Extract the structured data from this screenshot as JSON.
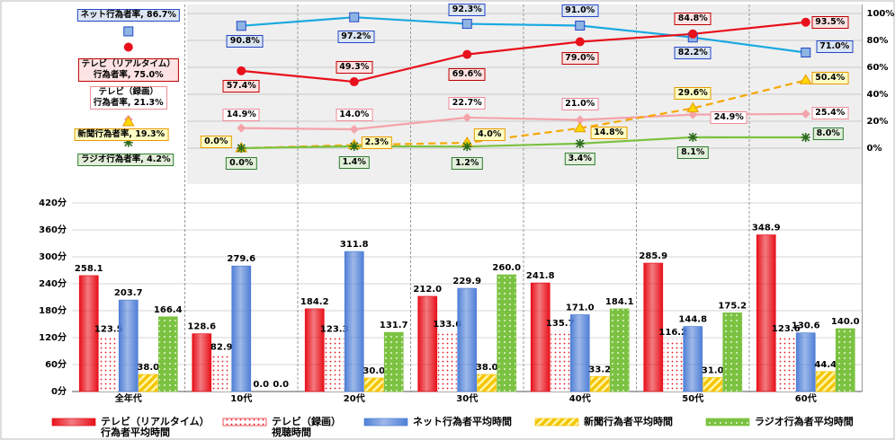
{
  "chart_data": [
    {
      "type": "line",
      "ylim": [
        0,
        100
      ],
      "yticks": [
        {
          "value": 0,
          "label": "0%"
        },
        {
          "value": 20,
          "label": "20%"
        },
        {
          "value": 40,
          "label": "40%"
        },
        {
          "value": 60,
          "label": "60%"
        },
        {
          "value": 80,
          "label": "80%"
        },
        {
          "value": 100,
          "label": "100%"
        }
      ],
      "grid": true,
      "series": [
        {
          "color": "#1aa9e0",
          "marker": "square",
          "marker_color": "#8eb4e3",
          "label_border": "#2446c8",
          "label_fill": "#dce6f2",
          "values": [
            86.7,
            90.8,
            97.2,
            92.3,
            91.0,
            82.2,
            71.0
          ],
          "value_labels": [
            "ネット行為者率, 86.7%",
            "90.8%",
            "97.2%",
            "92.3%",
            "91.0%",
            "82.2%",
            "71.0%"
          ]
        },
        {
          "color": "#e8101a",
          "marker": "circle",
          "marker_color": "#e8101a",
          "label_border": "#c00000",
          "label_fill": "#fde3e3",
          "values": [
            75.0,
            57.4,
            49.3,
            69.6,
            79.0,
            84.8,
            93.5
          ],
          "value_labels": [
            "テレビ（リアルタイム）\n行為者率, 75.0%",
            "57.4%",
            "49.3%",
            "69.6%",
            "79.0%",
            "84.8%",
            "93.5%"
          ]
        },
        {
          "color": "#f4a3ab",
          "marker": "diamond",
          "marker_color": "#f4a3ab",
          "label_border": "#f08a96",
          "label_fill": "#ffffff",
          "values": [
            21.3,
            14.9,
            14.0,
            22.7,
            21.0,
            24.9,
            25.4
          ],
          "value_labels": [
            "テレビ（録画）\n行為者率, 21.3%",
            "14.9%",
            "14.0%",
            "22.7%",
            "21.0%",
            "24.9%",
            "25.4%"
          ]
        },
        {
          "color": "#f5a800",
          "dash": true,
          "marker": "triangle",
          "marker_color": "#ffd700",
          "label_border": "#e69a00",
          "label_fill": "#ffffc4",
          "values": [
            19.3,
            0.0,
            2.3,
            4.0,
            14.8,
            29.6,
            50.4
          ],
          "value_labels": [
            "新聞行為者率, 19.3%",
            "0.0%",
            "2.3%",
            "4.0%",
            "14.8%",
            "29.6%",
            "50.4%"
          ]
        },
        {
          "color": "#7cc242",
          "marker": "star",
          "marker_color": "#2e6b1e",
          "label_border": "#2e7d32",
          "label_fill": "#e2efda",
          "values": [
            4.2,
            0.0,
            1.4,
            1.2,
            3.4,
            8.1,
            8.0
          ],
          "value_labels": [
            "ラジオ行為者率, 4.2%",
            "0.0%",
            "1.4%",
            "1.2%",
            "3.4%",
            "8.1%",
            "8.0%"
          ]
        }
      ]
    },
    {
      "type": "bar",
      "categories": [
        "全年代",
        "10代",
        "20代",
        "30代",
        "40代",
        "50代",
        "60代"
      ],
      "ylim": [
        0,
        420
      ],
      "yticks": [
        {
          "value": 0,
          "label": "0分"
        },
        {
          "value": 60,
          "label": "60分"
        },
        {
          "value": 120,
          "label": "120分"
        },
        {
          "value": 180,
          "label": "180分"
        },
        {
          "value": 240,
          "label": "240分"
        },
        {
          "value": 300,
          "label": "300分"
        },
        {
          "value": 360,
          "label": "360分"
        },
        {
          "value": 420,
          "label": "420分"
        }
      ],
      "grid": true,
      "series": [
        {
          "name": "テレビ（リアルタイム）\n行為者平均時間",
          "color": "#e8101a",
          "pattern": "gradient",
          "values": [
            258.1,
            128.6,
            184.2,
            212.0,
            241.8,
            285.9,
            348.9
          ],
          "value_labels": [
            "258.1",
            "128.6",
            "184.2",
            "212.0",
            "241.8",
            "285.9",
            "348.9"
          ]
        },
        {
          "name": "テレビ（録画）\n視聴時間",
          "color": "#e8101a",
          "pattern": "dotted-white",
          "values": [
            123.5,
            82.9,
            123.3,
            133.6,
            135.7,
            116.2,
            123.6
          ],
          "value_labels": [
            "123.5",
            "82.9",
            "123.3",
            "133.6",
            "135.7",
            "116.2",
            "123.6"
          ]
        },
        {
          "name": "ネット行為者平均時間",
          "color": "#4f7fd6",
          "pattern": "gradient",
          "values": [
            203.7,
            279.6,
            311.8,
            229.9,
            171.0,
            144.8,
            130.6
          ],
          "value_labels": [
            "203.7",
            "279.6",
            "311.8",
            "229.9",
            "171.0",
            "144.8",
            "130.6"
          ]
        },
        {
          "name": "新聞行為者平均時間",
          "color": "#f5c400",
          "pattern": "striped",
          "values": [
            38.0,
            0.0,
            30.0,
            38.0,
            33.2,
            31.0,
            44.4
          ],
          "value_labels": [
            "38.0",
            "0.0",
            "30.0",
            "38.0",
            "33.2",
            "31.0",
            "44.4"
          ]
        },
        {
          "name": "ラジオ行為者平均時間",
          "color": "#7cc242",
          "pattern": "dotted",
          "values": [
            166.4,
            0.0,
            131.7,
            260.0,
            184.1,
            175.2,
            140.0
          ],
          "value_labels": [
            "166.4",
            "0.0",
            "131.7",
            "260.0",
            "184.1",
            "175.2",
            "140.0"
          ]
        }
      ]
    }
  ]
}
